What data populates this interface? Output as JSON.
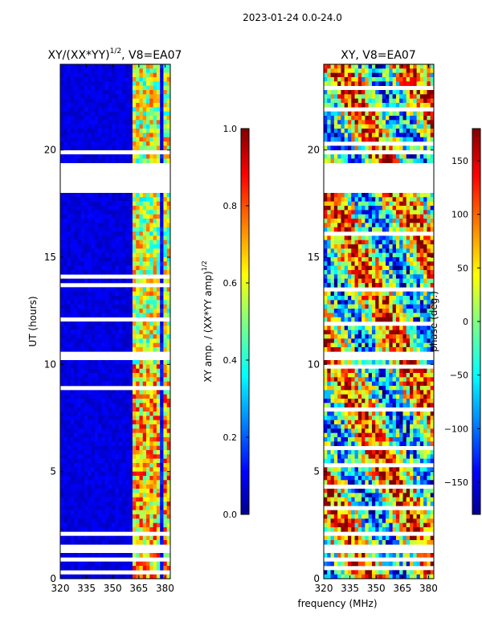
{
  "suptitle": "2023-01-24 0.0-24.0",
  "xlabel_shared": "frequency (MHz)",
  "chart_data": [
    {
      "type": "heatmap",
      "title": "XY/(XX*YY)^1/2, V8=EA07",
      "title_main": "XY/(XX*YY)",
      "title_sup": "1/2",
      "title_rest": ", V8=EA07",
      "ylabel": "UT (hours)",
      "xlim": [
        320,
        383
      ],
      "ylim": [
        0,
        24
      ],
      "xticks": [
        320,
        335,
        350,
        365,
        380
      ],
      "yticks": [
        0,
        5,
        10,
        15,
        20
      ],
      "colormap": "jet",
      "colorbar": {
        "label": "XY amp. / (XX*YY amp)^1/2",
        "label_main": "XY amp. / (XX*YY amp)",
        "label_sup": "1/2",
        "range": [
          0.0,
          1.0
        ],
        "ticks": [
          "0.0",
          "0.2",
          "0.4",
          "0.6",
          "0.8",
          "1.0"
        ]
      },
      "description": "Amplitude low (~0.05-0.15) across 320-360 MHz; elevated (0.4-0.9) in bands near 362-382 MHz; blank gaps near 10.2-10.7 h and 18.1-19.4 h"
    },
    {
      "type": "heatmap",
      "title": "XY, V8=EA07",
      "xlim": [
        320,
        383
      ],
      "ylim": [
        0,
        24
      ],
      "xticks": [
        320,
        335,
        350,
        365,
        380
      ],
      "yticks": [
        0,
        5,
        10,
        15,
        20
      ],
      "colormap": "jet",
      "colorbar": {
        "label": "phase (deg.)",
        "range": [
          -180,
          180
        ],
        "ticks": [
          "−150",
          "−100",
          "−50",
          "0",
          "50",
          "100",
          "150"
        ]
      },
      "description": "Phase varies widely across -180 to 180 deg; blank gaps near 10.2-10.7 h and 18.1-19.4 h"
    }
  ],
  "colors": {
    "jet_dark_blue": "#00008f",
    "jet_blue": "#0000ff",
    "jet_cyan": "#00ffff",
    "jet_yellow": "#ffff00",
    "jet_red": "#ff0000",
    "jet_dark_red": "#800000"
  }
}
